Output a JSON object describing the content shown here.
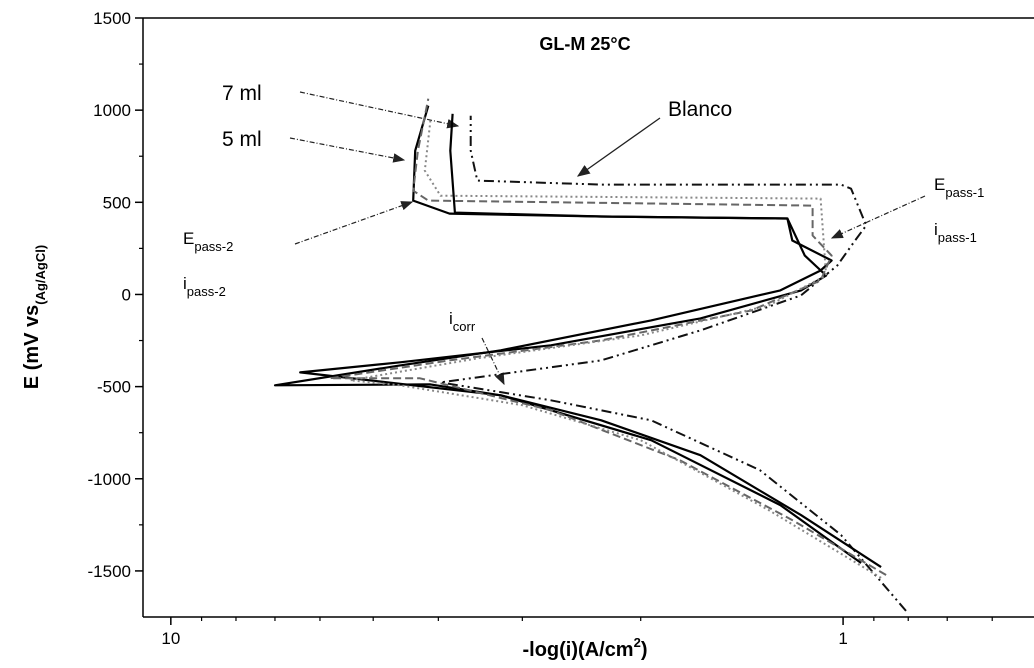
{
  "chart_data": {
    "type": "line",
    "title": "GL-M 25°C",
    "xlabel": {
      "text": "-log(i)(A/cm",
      "superscript": "2",
      "tail": ")"
    },
    "ylabel": {
      "text": "E (mV vs",
      "subscript": "(Ag/AgCl)"
    },
    "xscale": "log",
    "xlim": [
      11,
      0.52
    ],
    "xticks": [
      10,
      1
    ],
    "xminor": [
      9,
      8,
      7,
      6,
      5,
      4,
      3,
      2,
      0.9,
      0.8,
      0.7,
      0.6
    ],
    "ylim": [
      -1750,
      1500
    ],
    "yticks": [
      1500,
      1000,
      500,
      0,
      -500,
      -1000,
      -1500
    ],
    "yminor": [
      1250,
      750,
      250,
      -250,
      -750,
      -1250
    ],
    "grid": false,
    "series": [
      {
        "name": "Blanco",
        "color": "#111111",
        "linestyle": "dashdotdot",
        "x": [
          0.806,
          1.007,
          1.33,
          1.93,
          2.72,
          3.97,
          2.29,
          1.63,
          1.155,
          1.02,
          0.96,
          0.924,
          0.973,
          1.007,
          2.29,
          3.5,
          3.58,
          3.58
        ],
        "y": [
          -1717,
          -1305,
          -953,
          -683,
          -574,
          -477,
          -358,
          -195,
          -5,
          157,
          292,
          374,
          574,
          596,
          596,
          618,
          780,
          970
        ]
      },
      {
        "name": "5 ml",
        "color": "#000000",
        "linestyle": "solid",
        "x": [
          0.878,
          1.155,
          1.63,
          2.29,
          3.23,
          4.11,
          7.0,
          4.56,
          3.23,
          1.93,
          1.24,
          1.08,
          1.04,
          1.19,
          1.21,
          2.29,
          3.85,
          4.36,
          4.33,
          4.14
        ],
        "y": [
          -1479,
          -1197,
          -872,
          -683,
          -547,
          -488,
          -493,
          -385,
          -303,
          -141,
          22,
          130,
          184,
          293,
          412,
          423,
          439,
          509,
          780,
          1024
        ]
      },
      {
        "name": "7 ml",
        "color": "#000000",
        "linestyle": "solid",
        "x": [
          0.94,
          1.24,
          1.93,
          3.23,
          6.42,
          4.56,
          2.72,
          1.63,
          1.155,
          1.06,
          1.14,
          1.21,
          2.29,
          3.78,
          3.84,
          3.81
        ],
        "y": [
          -1457,
          -1143,
          -791,
          -547,
          -423,
          -368,
          -276,
          -130,
          22,
          103,
          211,
          412,
          423,
          444,
          780,
          980
        ]
      },
      {
        "color": "#666666",
        "linestyle": "dashed",
        "x": [
          0.863,
          1.19,
          1.75,
          2.72,
          4.26,
          5.8,
          3.85,
          2.29,
          1.37,
          1.08,
          1.04,
          1.11,
          1.11,
          4.14,
          4.36,
          4.29,
          4.14
        ],
        "y": [
          -1522,
          -1224,
          -899,
          -628,
          -455,
          -455,
          -358,
          -249,
          -87,
          76,
          211,
          320,
          482,
          509,
          563,
          780,
          1062
        ]
      },
      {
        "color": "#888888",
        "linestyle": "dotted",
        "x": [
          0.878,
          1.29,
          2.0,
          3.0,
          4.56,
          5.41,
          3.5,
          2.0,
          1.29,
          1.06,
          1.08,
          3.97,
          4.19,
          4.11
        ],
        "y": [
          -1538,
          -1170,
          -791,
          -601,
          -493,
          -466,
          -347,
          -222,
          -60,
          103,
          520,
          536,
          672,
          943
        ]
      }
    ],
    "annotations": [
      {
        "text": "7 ml"
      },
      {
        "text": "5 ml"
      },
      {
        "text": "Blanco"
      },
      {
        "text": "E",
        "subscript": "pass-1"
      },
      {
        "text": "i",
        "subscript": "pass-1"
      },
      {
        "text": "E",
        "subscript": "pass-2"
      },
      {
        "text": "i",
        "subscript": "pass-2"
      },
      {
        "text": "i",
        "subscript": "corr"
      }
    ]
  }
}
